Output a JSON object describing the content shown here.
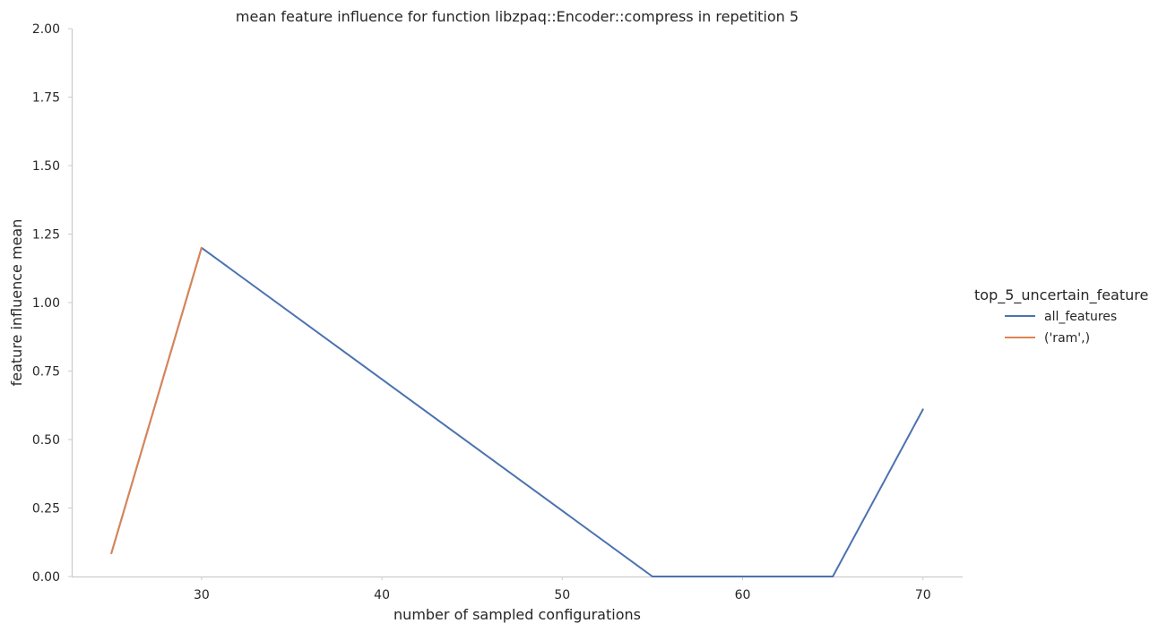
{
  "chart_data": {
    "type": "line",
    "title": "mean feature influence for function libzpaq::Encoder::compress in repetition 5",
    "xlabel": "number of sampled configurations",
    "ylabel": "feature influence mean",
    "xlim": [
      22.8,
      72.2
    ],
    "ylim": [
      0,
      2.0
    ],
    "x_ticks": [
      30,
      40,
      50,
      60,
      70
    ],
    "x_tick_labels": [
      "30",
      "40",
      "50",
      "60",
      "70"
    ],
    "y_ticks": [
      0,
      0.25,
      0.5,
      0.75,
      1.0,
      1.25,
      1.5,
      1.75,
      2.0
    ],
    "y_tick_labels": [
      "0.00",
      "0.25",
      "0.50",
      "0.75",
      "1.00",
      "1.25",
      "1.50",
      "1.75",
      "2.00"
    ],
    "grid": false,
    "legend_title": "top_5_uncertain_feature",
    "legend_position": "right",
    "series": [
      {
        "name": "all_features",
        "color": "#4c72b0",
        "x": [
          25,
          30,
          55,
          65,
          70
        ],
        "y": [
          0.085,
          1.2,
          0.0,
          0.0,
          0.61
        ]
      },
      {
        "name": "('ram',)",
        "color": "#dd8452",
        "x": [
          25,
          30
        ],
        "y": [
          0.085,
          1.2
        ]
      }
    ]
  }
}
